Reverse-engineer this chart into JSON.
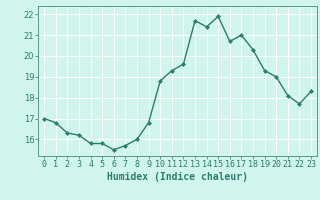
{
  "x": [
    0,
    1,
    2,
    3,
    4,
    5,
    6,
    7,
    8,
    9,
    10,
    11,
    12,
    13,
    14,
    15,
    16,
    17,
    18,
    19,
    20,
    21,
    22,
    23
  ],
  "y": [
    17.0,
    16.8,
    16.3,
    16.2,
    15.8,
    15.8,
    15.5,
    15.7,
    16.0,
    16.8,
    18.8,
    19.3,
    19.6,
    21.7,
    21.4,
    21.9,
    20.7,
    21.0,
    20.3,
    19.3,
    19.0,
    18.1,
    17.7,
    18.3
  ],
  "line_color": "#2e7d6e",
  "marker": "D",
  "marker_size": 2,
  "bg_color": "#cff5ec",
  "grid_color": "#ffffff",
  "xlabel": "Humidex (Indice chaleur)",
  "ylim": [
    15.2,
    22.4
  ],
  "xlim": [
    -0.5,
    23.5
  ],
  "yticks": [
    16,
    17,
    18,
    19,
    20,
    21,
    22
  ],
  "xticks": [
    0,
    1,
    2,
    3,
    4,
    5,
    6,
    7,
    8,
    9,
    10,
    11,
    12,
    13,
    14,
    15,
    16,
    17,
    18,
    19,
    20,
    21,
    22,
    23
  ],
  "xlabel_fontsize": 7,
  "tick_fontsize": 6,
  "line_width": 1.0
}
